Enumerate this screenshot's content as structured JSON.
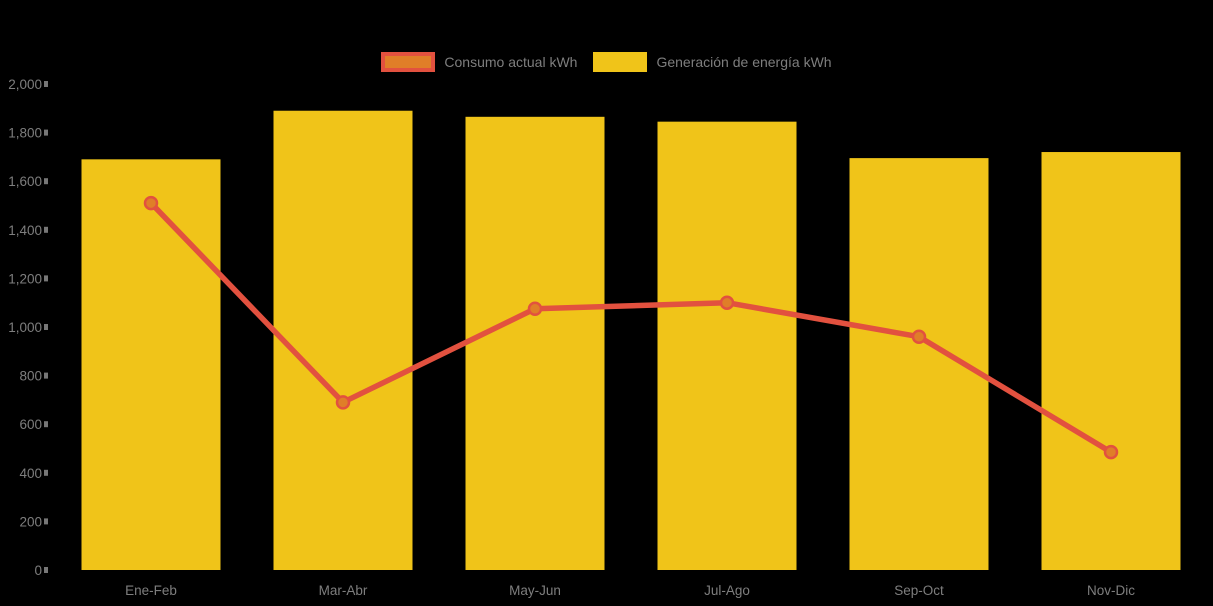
{
  "chart_data": {
    "type": "bar+line",
    "categories": [
      "Ene-Feb",
      "Mar-Abr",
      "May-Jun",
      "Jul-Ago",
      "Sep-Oct",
      "Nov-Dic"
    ],
    "series": [
      {
        "name": "Consumo actual kWh",
        "type": "line",
        "values": [
          1510,
          690,
          1075,
          1100,
          960,
          485
        ],
        "line_color": "#E2513F",
        "marker_fill": "#E07E28",
        "marker_stroke": "#E2513F"
      },
      {
        "name": "Generación de energía kWh",
        "type": "bar",
        "values": [
          1690,
          1890,
          1865,
          1845,
          1695,
          1720
        ],
        "bar_color": "#F0C419"
      }
    ],
    "title": "",
    "xlabel": "",
    "ylabel": "",
    "ylim": [
      0,
      2000
    ],
    "y_tick_step": 200,
    "y_tick_labels": [
      "0",
      "200",
      "400",
      "600",
      "800",
      "1,000",
      "1,200",
      "1,400",
      "1,600",
      "1,800",
      "2,000"
    ],
    "grid": false,
    "legend_position": "top-center"
  },
  "legend": {
    "items": [
      {
        "label": "Consumo actual kWh"
      },
      {
        "label": "Generación de energía kWh"
      }
    ]
  },
  "colors": {
    "background": "#000000",
    "bar_yellow": "#F0C419",
    "line_red": "#E2513F",
    "marker_orange": "#E07E28",
    "axis_text_gray": "#7E7E7E",
    "tick_mark_gray": "#777777"
  }
}
